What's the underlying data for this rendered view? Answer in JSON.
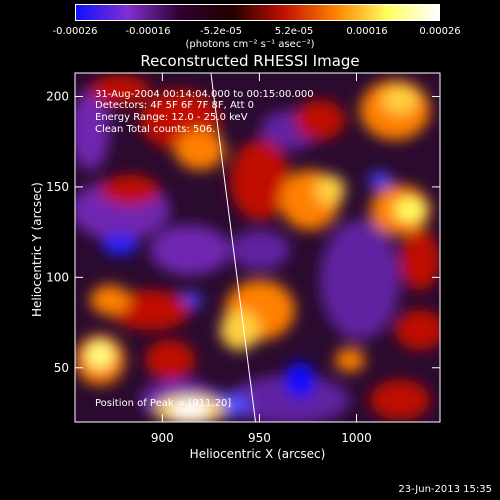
{
  "colorbar": {
    "tick_labels": [
      "-0.00026",
      "-0.00016",
      "-5.2e-05",
      "5.2e-05",
      "0.00016",
      "0.00026"
    ],
    "units": "(photons cm⁻² s⁻¹ asec⁻²)",
    "colors": [
      "#1010ff",
      "#8030d0",
      "#300030",
      "#200000",
      "#c01000",
      "#ff8000",
      "#ffff60",
      "#ffffff"
    ]
  },
  "chart_data": {
    "type": "heatmap",
    "title": "Reconstructed RHESSI Image",
    "xlabel": "Heliocentric X (arcsec)",
    "ylabel": "Heliocentric Y (arcsec)",
    "xlim": [
      855,
      1043
    ],
    "ylim": [
      20,
      213
    ],
    "xticks": [
      900,
      950,
      1000
    ],
    "yticks": [
      50,
      100,
      150,
      200
    ],
    "limb_line": {
      "x_top": 925,
      "y_top": 213,
      "x_bottom": 948,
      "y_bottom": 20
    }
  },
  "annotations": {
    "time": "31-Aug-2004 00:14:04.000 to 00:15:00.000",
    "detectors": "Detectors: 4F 5F 6F 7F 8F, Att 0",
    "energy": "Energy Range: 12.0 - 25.0 keV",
    "clean": "Clean    Total counts: 506.",
    "position": "Position of Peak = [911,20]"
  },
  "timestamp": "23-Jun-2013 15:35"
}
